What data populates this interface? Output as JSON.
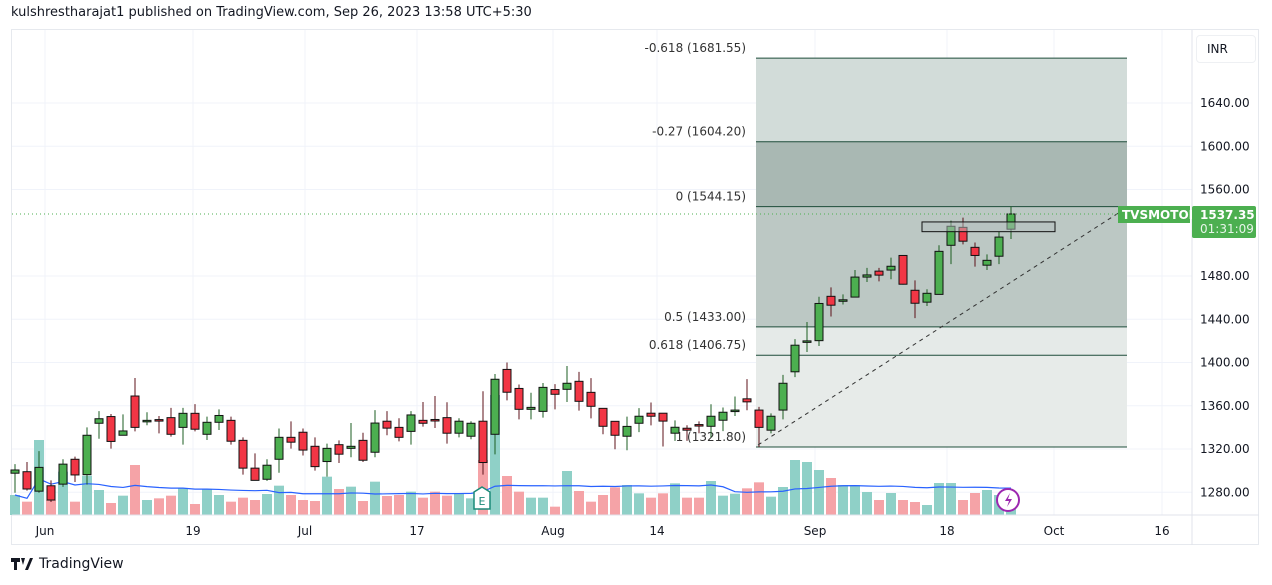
{
  "header": {
    "text": "kulshrestharajat1 published on TradingView.com, Sep 26, 2023 13:58 UTC+5:30"
  },
  "footer": {
    "brand": "TradingView"
  },
  "currency": "INR",
  "colors": {
    "up": "#4caf50",
    "down": "#f23645",
    "vol_up": "#8fd0c7",
    "vol_down": "#f5a3a7",
    "vol_ma": "#2962ff",
    "label_bg": "#4caf50"
  },
  "symbol_label": {
    "name": "TVSMOTOR",
    "price": "1537.35",
    "countdown": "01:31:09"
  },
  "chart_data": {
    "type": "candlestick",
    "price_axis": {
      "ticks": [
        "1640.00",
        "1600.00",
        "1560.00",
        "1480.00",
        "1440.00",
        "1400.00",
        "1360.00",
        "1320.00",
        "1280.00"
      ],
      "tick_values": [
        1640,
        1600,
        1560,
        1480,
        1440,
        1400,
        1360,
        1320,
        1280
      ]
    },
    "time_axis": {
      "ticks": [
        "Jun",
        "19",
        "Jul",
        "17",
        "Aug",
        "14",
        "Sep",
        "18",
        "Oct",
        "16"
      ]
    },
    "fib_levels": [
      {
        "ratio": "-0.618",
        "price": 1681.55,
        "label": "-0.618 (1681.55)"
      },
      {
        "ratio": "-0.27",
        "price": 1604.2,
        "label": "-0.27 (1604.20)"
      },
      {
        "ratio": "0",
        "price": 1544.15,
        "label": "0 (1544.15)"
      },
      {
        "ratio": "0.5",
        "price": 1433.0,
        "label": "0.5 (1433.00)"
      },
      {
        "ratio": "0.618",
        "price": 1406.75,
        "label": "0.618 (1406.75)"
      },
      {
        "ratio": "1",
        "price": 1321.8,
        "label": "1 (1321.80)"
      }
    ],
    "fib_band_colors": [
      "#d2dcd9",
      "#a9b8b3",
      "#bcc8c4",
      "#e5eae8",
      "#e7ebe9"
    ],
    "zone_rectangle": {
      "top": 1530,
      "bottom": 1521
    },
    "last_price": 1537.35,
    "ohlc": [
      [
        1297.6,
        1306,
        1279.5,
        1300.6
      ],
      [
        1299,
        1308,
        1281.5,
        1283
      ],
      [
        1281,
        1318,
        1279.5,
        1303
      ],
      [
        1286,
        1291,
        1271,
        1272.8
      ],
      [
        1287.5,
        1310.5,
        1285,
        1306
      ],
      [
        1310.5,
        1313,
        1289.5,
        1296
      ],
      [
        1296.3,
        1340,
        1287,
        1332.7
      ],
      [
        1343.8,
        1355,
        1329.5,
        1348
      ],
      [
        1350,
        1352.4,
        1320.3,
        1327
      ],
      [
        1332.7,
        1352,
        1332.7,
        1336.7
      ],
      [
        1369,
        1385.7,
        1336.3,
        1340
      ],
      [
        1346.5,
        1354,
        1342,
        1346.5
      ],
      [
        1347.2,
        1350.5,
        1334.5,
        1347
      ],
      [
        1349,
        1358,
        1331.5,
        1333.6
      ],
      [
        1340,
        1358,
        1324,
        1353
      ],
      [
        1353,
        1361.5,
        1336.3,
        1338.3
      ],
      [
        1333.6,
        1350,
        1328.3,
        1344.7
      ],
      [
        1344.7,
        1356.7,
        1337.6,
        1351
      ],
      [
        1346.5,
        1350,
        1324,
        1327.2
      ],
      [
        1328,
        1330.8,
        1296.3,
        1302.3
      ],
      [
        1302.3,
        1316,
        1291,
        1291
      ],
      [
        1292,
        1310.5,
        1290.5,
        1305
      ],
      [
        1310.5,
        1339,
        1298,
        1330.8
      ],
      [
        1330.8,
        1345.5,
        1320.3,
        1326.3
      ],
      [
        1335.5,
        1339,
        1314,
        1319
      ],
      [
        1322.5,
        1330.8,
        1300,
        1303.7
      ],
      [
        1308.4,
        1325,
        1294.5,
        1320.6
      ],
      [
        1324,
        1328,
        1307,
        1315.2
      ],
      [
        1320.6,
        1344,
        1312.4,
        1322.5
      ],
      [
        1328,
        1335,
        1308,
        1309.6
      ],
      [
        1317,
        1356,
        1312.4,
        1344
      ],
      [
        1345.7,
        1355,
        1332.7,
        1339.3
      ],
      [
        1340,
        1348.4,
        1327,
        1330.8
      ],
      [
        1336.3,
        1355,
        1324,
        1351.5
      ],
      [
        1346.5,
        1363.5,
        1340.7,
        1343.8
      ],
      [
        1347.3,
        1369,
        1339.4,
        1346.5
      ],
      [
        1349,
        1363.2,
        1325,
        1334.6
      ],
      [
        1334.6,
        1348.4,
        1330.8,
        1345.7
      ],
      [
        1331.8,
        1345.7,
        1329,
        1343.8
      ],
      [
        1345.7,
        1373.4,
        1296.3,
        1307.5
      ],
      [
        1333.6,
        1389.4,
        1315,
        1384.5
      ],
      [
        1393.6,
        1400,
        1365,
        1372.5
      ],
      [
        1376,
        1379.6,
        1347.4,
        1356.7
      ],
      [
        1356.7,
        1372,
        1347.4,
        1358.5
      ],
      [
        1354.8,
        1381,
        1349,
        1377
      ],
      [
        1375,
        1380,
        1356.7,
        1370.6
      ],
      [
        1375.2,
        1396.8,
        1363.5,
        1380.8
      ],
      [
        1382.6,
        1391.3,
        1355.5,
        1364.1
      ],
      [
        1372.4,
        1385.5,
        1348.3,
        1359.5
      ],
      [
        1357.6,
        1357.6,
        1333.6,
        1341
      ],
      [
        1345.6,
        1345.6,
        1319.8,
        1332.7
      ],
      [
        1331.8,
        1350,
        1318.8,
        1340.9
      ],
      [
        1343.8,
        1357.8,
        1335.6,
        1350.3
      ],
      [
        1353.1,
        1363,
        1341.9,
        1350.3
      ],
      [
        1353.1,
        1353.1,
        1322.3,
        1345.8
      ],
      [
        1334.6,
        1346.5,
        1327.5,
        1340.1
      ],
      [
        1339.2,
        1342,
        1327.5,
        1337.4
      ],
      [
        1342.6,
        1345.6,
        1334.6,
        1342.1
      ],
      [
        1341,
        1361.4,
        1330.8,
        1350.3
      ],
      [
        1346.6,
        1358.4,
        1336.5,
        1354
      ],
      [
        1355,
        1368.5,
        1350.5,
        1356
      ],
      [
        1366.4,
        1384.6,
        1355.8,
        1363.6
      ],
      [
        1356,
        1359,
        1321.8,
        1340
      ],
      [
        1337.4,
        1353,
        1334.5,
        1350.3
      ],
      [
        1356,
        1388.5,
        1347.4,
        1380.8
      ],
      [
        1391.4,
        1421.6,
        1386.5,
        1416
      ],
      [
        1419,
        1437.5,
        1409.7,
        1420
      ],
      [
        1420.2,
        1460.8,
        1415.3,
        1454.6
      ],
      [
        1461.2,
        1469.5,
        1442.5,
        1453
      ],
      [
        1458,
        1463,
        1453.6,
        1458
      ],
      [
        1460.5,
        1485.5,
        1460.5,
        1479
      ],
      [
        1479,
        1487.5,
        1474.5,
        1481
      ],
      [
        1484.5,
        1487.5,
        1475,
        1480.8
      ],
      [
        1485.5,
        1497,
        1477,
        1489
      ],
      [
        1499,
        1499,
        1472,
        1472.4
      ],
      [
        1466.8,
        1476,
        1441,
        1454.8
      ],
      [
        1455.8,
        1467.7,
        1452.2,
        1464
      ],
      [
        1463,
        1508.4,
        1463,
        1502.8
      ],
      [
        1508.4,
        1531.2,
        1491,
        1526
      ],
      [
        1525,
        1534,
        1509.3,
        1512.2
      ],
      [
        1506.5,
        1511,
        1488.7,
        1499
      ],
      [
        1490,
        1500,
        1485.5,
        1494.5
      ],
      [
        1498.3,
        1521.2,
        1491,
        1516
      ],
      [
        1523.3,
        1544.4,
        1514.2,
        1537.35
      ]
    ],
    "volume_relative": [
      60,
      40,
      225,
      45,
      130,
      40,
      118,
      75,
      36,
      58,
      150,
      45,
      50,
      58,
      80,
      33,
      78,
      60,
      40,
      52,
      45,
      63,
      88,
      60,
      45,
      42,
      115,
      78,
      85,
      42,
      100,
      57,
      60,
      70,
      52,
      70,
      58,
      65,
      50,
      165,
      360,
      117,
      70,
      52,
      52,
      25,
      132,
      72,
      40,
      60,
      83,
      90,
      65,
      52,
      65,
      95,
      52,
      52,
      102,
      58,
      64,
      80,
      98,
      55,
      84,
      165,
      159,
      135,
      111,
      90,
      90,
      69,
      45,
      66,
      45,
      39,
      30,
      96,
      96,
      45,
      66,
      75,
      60,
      45
    ],
    "volume_ma_period": 20
  }
}
